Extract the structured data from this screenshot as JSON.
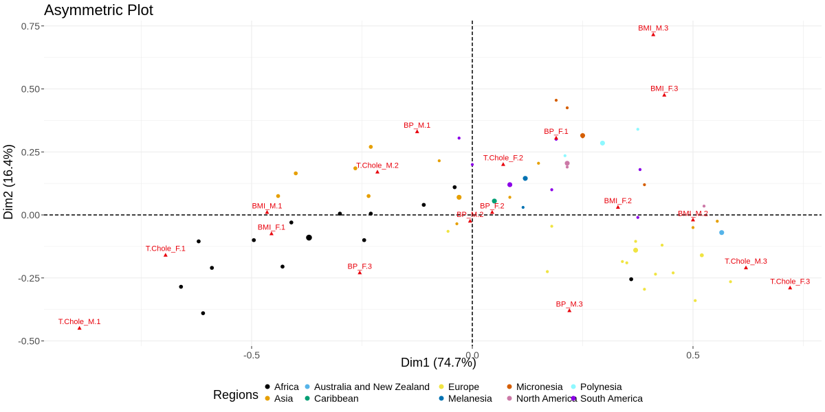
{
  "chart_data": {
    "type": "scatter",
    "title": "Asymmetric Plot",
    "xlabel": "Dim1 (74.7%)",
    "ylabel": "Dim2 (16.4%)",
    "xlim": [
      -0.965,
      0.78
    ],
    "ylim": [
      -0.5,
      0.75
    ],
    "x_ticks": [
      -0.5,
      0.0,
      0.5
    ],
    "x_tick_labels": [
      "-0.5",
      "0.0",
      "0.5"
    ],
    "y_ticks": [
      -0.5,
      -0.25,
      0.0,
      0.25,
      0.5,
      0.75
    ],
    "y_tick_labels": [
      "-0.50",
      "-0.25",
      "0.00",
      "0.25",
      "0.50",
      "0.75"
    ],
    "grid": true,
    "reference_lines": {
      "x": 0,
      "y": 0,
      "style": "dashed"
    },
    "legend": {
      "title": "Regions",
      "position": "bottom",
      "entries": [
        {
          "name": "Africa",
          "color": "#000000"
        },
        {
          "name": "Asia",
          "color": "#E69F00"
        },
        {
          "name": "Australia and New Zealand",
          "color": "#56B4E9"
        },
        {
          "name": "Caribbean",
          "color": "#009E73"
        },
        {
          "name": "Europe",
          "color": "#F0E442"
        },
        {
          "name": "Melanesia",
          "color": "#0072B2"
        },
        {
          "name": "Micronesia",
          "color": "#D55E00"
        },
        {
          "name": "North America",
          "color": "#CC79A7"
        },
        {
          "name": "Polynesia",
          "color": "#8EF8FF"
        },
        {
          "name": "South America",
          "color": "#8B00E8"
        }
      ]
    },
    "variables": {
      "color": "#E8000B",
      "points": [
        {
          "label": "BMI_M.3",
          "x": 0.41,
          "y": 0.715
        },
        {
          "label": "BMI_F.3",
          "x": 0.435,
          "y": 0.475
        },
        {
          "label": "BP_M.1",
          "x": -0.125,
          "y": 0.33
        },
        {
          "label": "BP_F.1",
          "x": 0.19,
          "y": 0.305
        },
        {
          "label": "T.Chole_M.2",
          "x": -0.215,
          "y": 0.17
        },
        {
          "label": "T.Chole_F.2",
          "x": 0.07,
          "y": 0.2
        },
        {
          "label": "BMI_M.1",
          "x": -0.465,
          "y": 0.01
        },
        {
          "label": "BP_F.2",
          "x": 0.045,
          "y": 0.01
        },
        {
          "label": "BMI_F.2",
          "x": 0.33,
          "y": 0.03
        },
        {
          "label": "BMI_M.2",
          "x": 0.5,
          "y": -0.02
        },
        {
          "label": "BMI_F.1",
          "x": -0.455,
          "y": -0.075
        },
        {
          "label": "BP_M.2",
          "x": -0.005,
          "y": -0.025
        },
        {
          "label": "T.Chole_F.1",
          "x": -0.695,
          "y": -0.16
        },
        {
          "label": "BP_F.3",
          "x": -0.255,
          "y": -0.23
        },
        {
          "label": "T.Chole_M.3",
          "x": 0.62,
          "y": -0.21
        },
        {
          "label": "T.Chole_F.3",
          "x": 0.72,
          "y": -0.29
        },
        {
          "label": "BP_M.3",
          "x": 0.22,
          "y": -0.38
        },
        {
          "label": "T.Chole_M.1",
          "x": -0.89,
          "y": -0.45
        }
      ]
    },
    "series": [
      {
        "name": "Africa",
        "points": [
          [
            -0.04,
            0.11
          ],
          [
            -0.11,
            0.04
          ],
          [
            -0.23,
            0.005
          ],
          [
            -0.3,
            0.005
          ],
          [
            -0.41,
            -0.03
          ],
          [
            -0.495,
            -0.1
          ],
          [
            -0.37,
            -0.09
          ],
          [
            -0.62,
            -0.105
          ],
          [
            -0.245,
            -0.1
          ],
          [
            -0.59,
            -0.21
          ],
          [
            -0.43,
            -0.205
          ],
          [
            -0.66,
            -0.285
          ],
          [
            -0.61,
            -0.39
          ],
          [
            0.36,
            -0.255
          ]
        ],
        "sizes": [
          4,
          4,
          4,
          4,
          4,
          4,
          6,
          4,
          4,
          4,
          4,
          4,
          4,
          4
        ]
      },
      {
        "name": "Asia",
        "points": [
          [
            -0.23,
            0.27
          ],
          [
            -0.075,
            0.215
          ],
          [
            -0.4,
            0.165
          ],
          [
            -0.265,
            0.185
          ],
          [
            -0.44,
            0.075
          ],
          [
            -0.235,
            0.075
          ],
          [
            -0.03,
            0.07
          ],
          [
            0.15,
            0.205
          ],
          [
            0.085,
            0.07
          ],
          [
            -0.035,
            -0.035
          ],
          [
            0.5,
            -0.05
          ],
          [
            0.555,
            -0.025
          ]
        ],
        "sizes": [
          4,
          3,
          4,
          4,
          4,
          4,
          5,
          3,
          3,
          3,
          3,
          3
        ]
      },
      {
        "name": "Australia and New Zealand",
        "points": [
          [
            0.565,
            -0.07
          ]
        ],
        "sizes": [
          5
        ]
      },
      {
        "name": "Caribbean",
        "points": [
          [
            0.05,
            0.055
          ]
        ],
        "sizes": [
          5
        ]
      },
      {
        "name": "Europe",
        "points": [
          [
            -0.055,
            -0.065
          ],
          [
            0.18,
            -0.045
          ],
          [
            0.37,
            -0.105
          ],
          [
            0.37,
            -0.14
          ],
          [
            0.43,
            -0.12
          ],
          [
            0.35,
            -0.19
          ],
          [
            0.34,
            -0.185
          ],
          [
            0.415,
            -0.235
          ],
          [
            0.52,
            -0.16
          ],
          [
            0.455,
            -0.23
          ],
          [
            0.17,
            -0.225
          ],
          [
            0.39,
            -0.295
          ],
          [
            0.585,
            -0.265
          ],
          [
            0.505,
            -0.34
          ]
        ],
        "sizes": [
          3,
          3,
          3,
          5,
          3,
          3,
          3,
          3,
          4,
          3,
          3,
          3,
          3,
          3
        ]
      },
      {
        "name": "Melanesia",
        "points": [
          [
            0.12,
            0.145
          ],
          [
            0.115,
            0.03
          ]
        ],
        "sizes": [
          5,
          3
        ]
      },
      {
        "name": "Micronesia",
        "points": [
          [
            0.19,
            0.455
          ],
          [
            0.215,
            0.425
          ],
          [
            0.25,
            0.315
          ],
          [
            0.25,
            0.31
          ],
          [
            0.39,
            0.12
          ]
        ],
        "sizes": [
          3,
          3,
          5,
          3,
          3
        ]
      },
      {
        "name": "North America",
        "points": [
          [
            0.215,
            0.205
          ],
          [
            0.215,
            0.19
          ],
          [
            0.525,
            0.035
          ]
        ],
        "sizes": [
          5,
          3,
          3
        ]
      },
      {
        "name": "Polynesia",
        "points": [
          [
            0.375,
            0.34
          ],
          [
            0.295,
            0.285
          ],
          [
            0.21,
            0.235
          ]
        ],
        "sizes": [
          3,
          5,
          3
        ]
      },
      {
        "name": "South America",
        "points": [
          [
            -0.03,
            0.305
          ],
          [
            0.19,
            0.3
          ],
          [
            0.085,
            0.12
          ],
          [
            0.18,
            0.1
          ],
          [
            0.38,
            0.18
          ],
          [
            0.375,
            -0.01
          ],
          [
            0.0,
            0.2
          ]
        ],
        "sizes": [
          3,
          3,
          5,
          3,
          3,
          3,
          3
        ]
      }
    ]
  }
}
